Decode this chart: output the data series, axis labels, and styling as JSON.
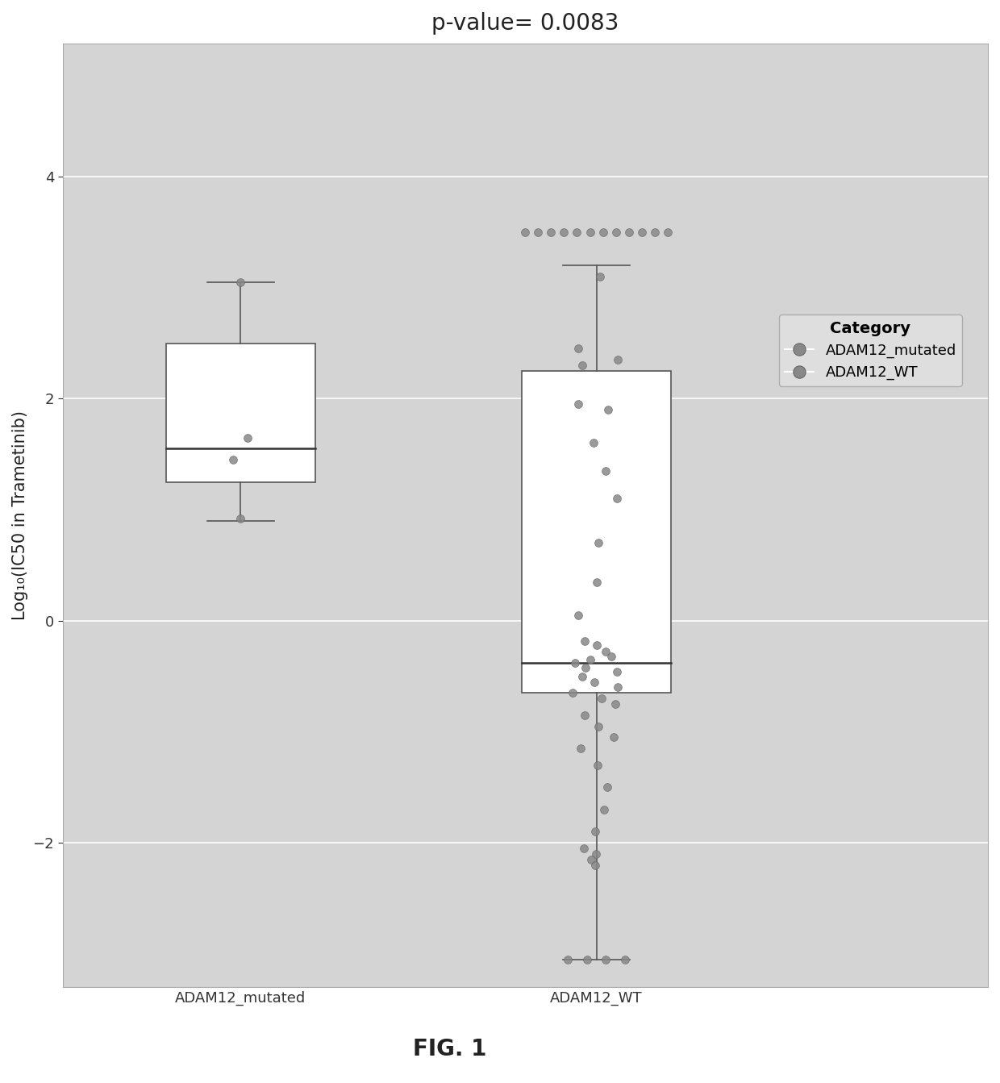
{
  "title": "p-value= 0.0083",
  "ylabel": "Log₁₀(IC50 in Trametinib)",
  "xlabel_fig": "FIG. 1",
  "categories": [
    "ADAM12_mutated",
    "ADAM12_WT"
  ],
  "plot_bg_color": "#d4d4d4",
  "fig_bg_color": "#ffffff",
  "box_facecolor": "#ffffff",
  "box_edgecolor": "#555555",
  "whisker_color": "#555555",
  "median_color": "#333333",
  "dot_color": "#888888",
  "dot_edge_color": "#666666",
  "ylim": [
    -3.3,
    5.2
  ],
  "yticks": [
    -2,
    0,
    2,
    4
  ],
  "grid_color": "#ffffff",
  "legend_title": "Category",
  "legend_labels": [
    "ADAM12_mutated",
    "ADAM12_WT"
  ],
  "title_fontsize": 20,
  "axis_label_fontsize": 15,
  "tick_fontsize": 13,
  "legend_fontsize": 13,
  "fig_label_fontsize": 20,
  "mutated_q1": 1.25,
  "mutated_median": 1.55,
  "mutated_q3": 2.5,
  "mutated_whisker_low": 0.9,
  "mutated_whisker_high": 3.05,
  "wt_q1": -0.65,
  "wt_median": -0.38,
  "wt_q3": 2.25,
  "wt_whisker_low": -3.05,
  "wt_whisker_high": 3.2
}
